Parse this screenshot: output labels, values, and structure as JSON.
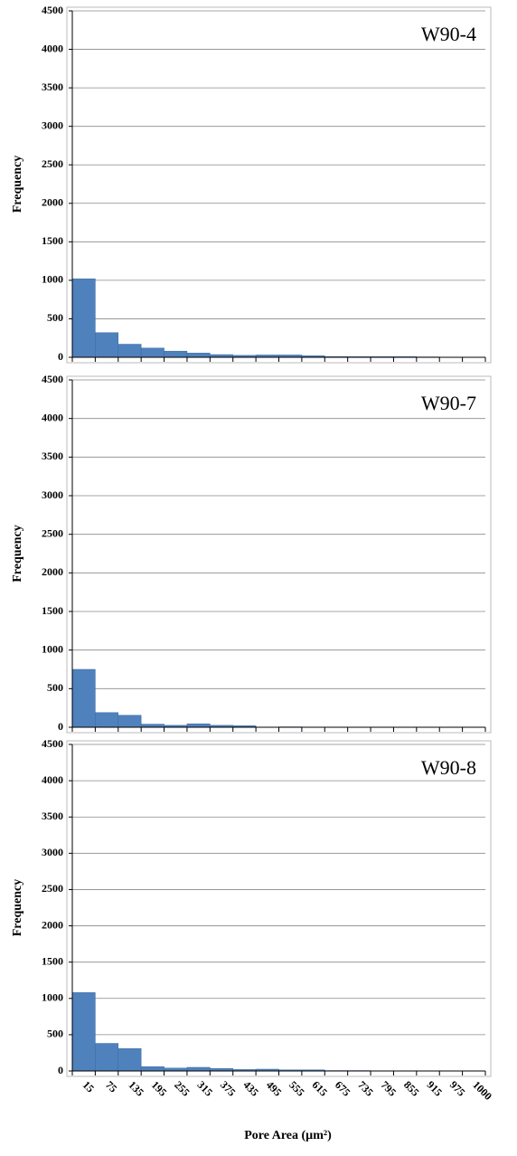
{
  "chart_data": [
    {
      "type": "bar",
      "label": "W90-4",
      "y_label": "Frequency",
      "color": "#4f81bd",
      "values": [
        1020,
        320,
        170,
        120,
        80,
        55,
        35,
        25,
        30,
        30,
        20,
        10,
        8,
        8,
        8,
        5,
        0,
        0
      ],
      "ylim": [
        0,
        4500
      ],
      "yticks": [
        0,
        500,
        1000,
        1500,
        2000,
        2500,
        3000,
        3500,
        4000,
        4500
      ],
      "grid": true
    },
    {
      "type": "bar",
      "label": "W90-7",
      "y_label": "Frequency",
      "color": "#4f81bd",
      "values": [
        750,
        190,
        155,
        40,
        25,
        45,
        25,
        20,
        0,
        5,
        0,
        0,
        0,
        0,
        0,
        0,
        0,
        0
      ],
      "ylim": [
        0,
        4500
      ],
      "yticks": [
        0,
        500,
        1000,
        1500,
        2000,
        2500,
        3000,
        3500,
        4000,
        4500
      ],
      "grid": true
    },
    {
      "type": "bar",
      "label": "W90-8",
      "y_label": "Frequency",
      "x_label": "Pore Area (µm²)",
      "color": "#4f81bd",
      "categories": [
        "15",
        "75",
        "135",
        "195",
        "255",
        "315",
        "375",
        "435",
        "495",
        "555",
        "615",
        "675",
        "735",
        "795",
        "855",
        "915",
        "975",
        "1000"
      ],
      "values": [
        1080,
        380,
        310,
        60,
        40,
        50,
        35,
        20,
        25,
        15,
        15,
        5,
        5,
        3,
        3,
        2,
        2,
        0
      ],
      "ylim": [
        0,
        4500
      ],
      "yticks": [
        0,
        500,
        1000,
        1500,
        2000,
        2500,
        3000,
        3500,
        4000,
        4500
      ],
      "grid": true
    }
  ]
}
